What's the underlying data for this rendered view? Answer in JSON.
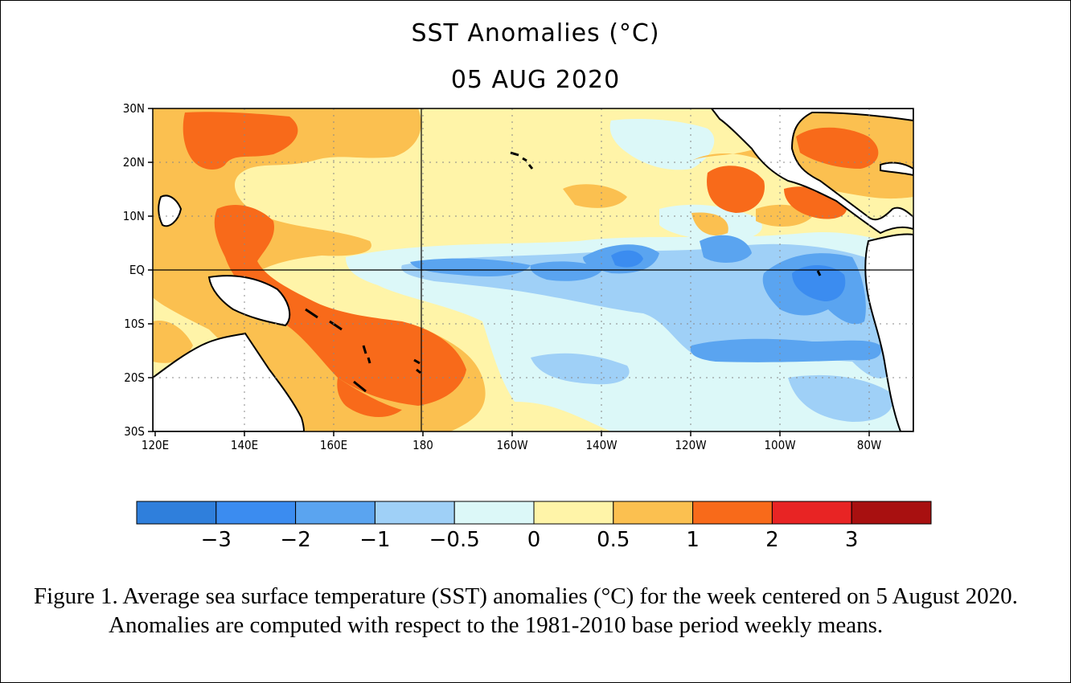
{
  "figure": {
    "title": "SST Anomalies (°C)",
    "date": "05 AUG 2020",
    "caption": "Figure 1. Average sea surface temperature (SST) anomalies (°C) for the week centered on 5 August 2020.  Anomalies are computed with respect to the 1981-2010 base period weekly means."
  },
  "map": {
    "lat_labels": [
      "30N",
      "20N",
      "10N",
      "EQ",
      "10S",
      "20S",
      "30S"
    ],
    "lon_labels": [
      "120E",
      "140E",
      "160E",
      "180",
      "160W",
      "140W",
      "120W",
      "100W",
      "80W"
    ],
    "region": {
      "lon_range": [
        "120E",
        "70W"
      ],
      "lat_range": [
        "30S",
        "30N"
      ]
    }
  },
  "colorbar": {
    "labels": [
      "−3",
      "−2",
      "−1",
      "−0.5",
      "0",
      "0.5",
      "1",
      "2",
      "3"
    ],
    "colors": [
      "#2f7fdc",
      "#3b8cf0",
      "#5aa4f0",
      "#9fd0f7",
      "#dcf8f8",
      "#fff4a8",
      "#fbc050",
      "#f86a1a",
      "#e82424",
      "#a81010"
    ]
  },
  "anomaly_colors": {
    "cold_3": "#3b8cf0",
    "cold_2": "#5aa4f0",
    "cold_1": "#9fd0f7",
    "neutral_cold": "#dcf8f8",
    "neutral_warm": "#fff4a8",
    "warm_1": "#fbc050",
    "warm_2": "#f86a1a"
  }
}
